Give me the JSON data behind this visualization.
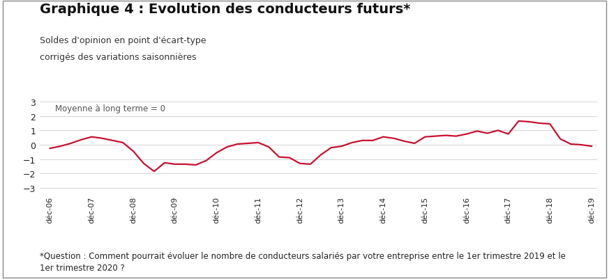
{
  "title": "Graphique 4 : Evolution des conducteurs futurs*",
  "subtitle1": "Soldes d'opinion en point d'écart-type",
  "subtitle2": "corrigés des variations saisonnières",
  "annotation": "Moyenne à long terme = 0",
  "footnote": "*Question : Comment pourrait évoluer le nombre de conducteurs salariés par votre entreprise entre le 1er trimestre 2019 et le\n1er trimestre 2020 ?",
  "line_color": "#c8102e",
  "line_width": 1.6,
  "background_color": "#ffffff",
  "ylim": [
    -3.5,
    3.5
  ],
  "yticks": [
    -3,
    -2,
    -1,
    0,
    1,
    2,
    3
  ],
  "x_labels": [
    "déc-06",
    "déc-07",
    "déc-08",
    "déc-09",
    "déc-10",
    "déc-11",
    "déc-12",
    "déc-13",
    "déc-14",
    "déc-15",
    "déc-16",
    "déc-17",
    "déc-18",
    "déc-19"
  ],
  "x_positions": [
    0,
    4,
    8,
    12,
    16,
    20,
    24,
    28,
    32,
    36,
    40,
    44,
    48,
    52
  ],
  "values": [
    -0.25,
    -0.1,
    0.1,
    0.35,
    0.55,
    0.45,
    0.3,
    0.15,
    -0.45,
    -1.3,
    -1.85,
    -1.25,
    -1.35,
    -1.35,
    -1.4,
    -1.1,
    -0.55,
    -0.15,
    0.05,
    0.1,
    0.15,
    -0.15,
    -0.85,
    -0.9,
    -1.3,
    -1.35,
    -0.7,
    -0.2,
    -0.1,
    0.15,
    0.3,
    0.3,
    0.55,
    0.45,
    0.25,
    0.1,
    0.55,
    0.6,
    0.65,
    0.6,
    0.75,
    0.95,
    0.8,
    1.0,
    0.75,
    1.65,
    1.6,
    1.5,
    1.45,
    0.4,
    0.05,
    0.0,
    -0.1
  ],
  "title_fontsize": 14,
  "subtitle_fontsize": 9,
  "annotation_fontsize": 8.5,
  "tick_fontsize": 8,
  "footnote_fontsize": 8.5,
  "border_color": "#888888"
}
